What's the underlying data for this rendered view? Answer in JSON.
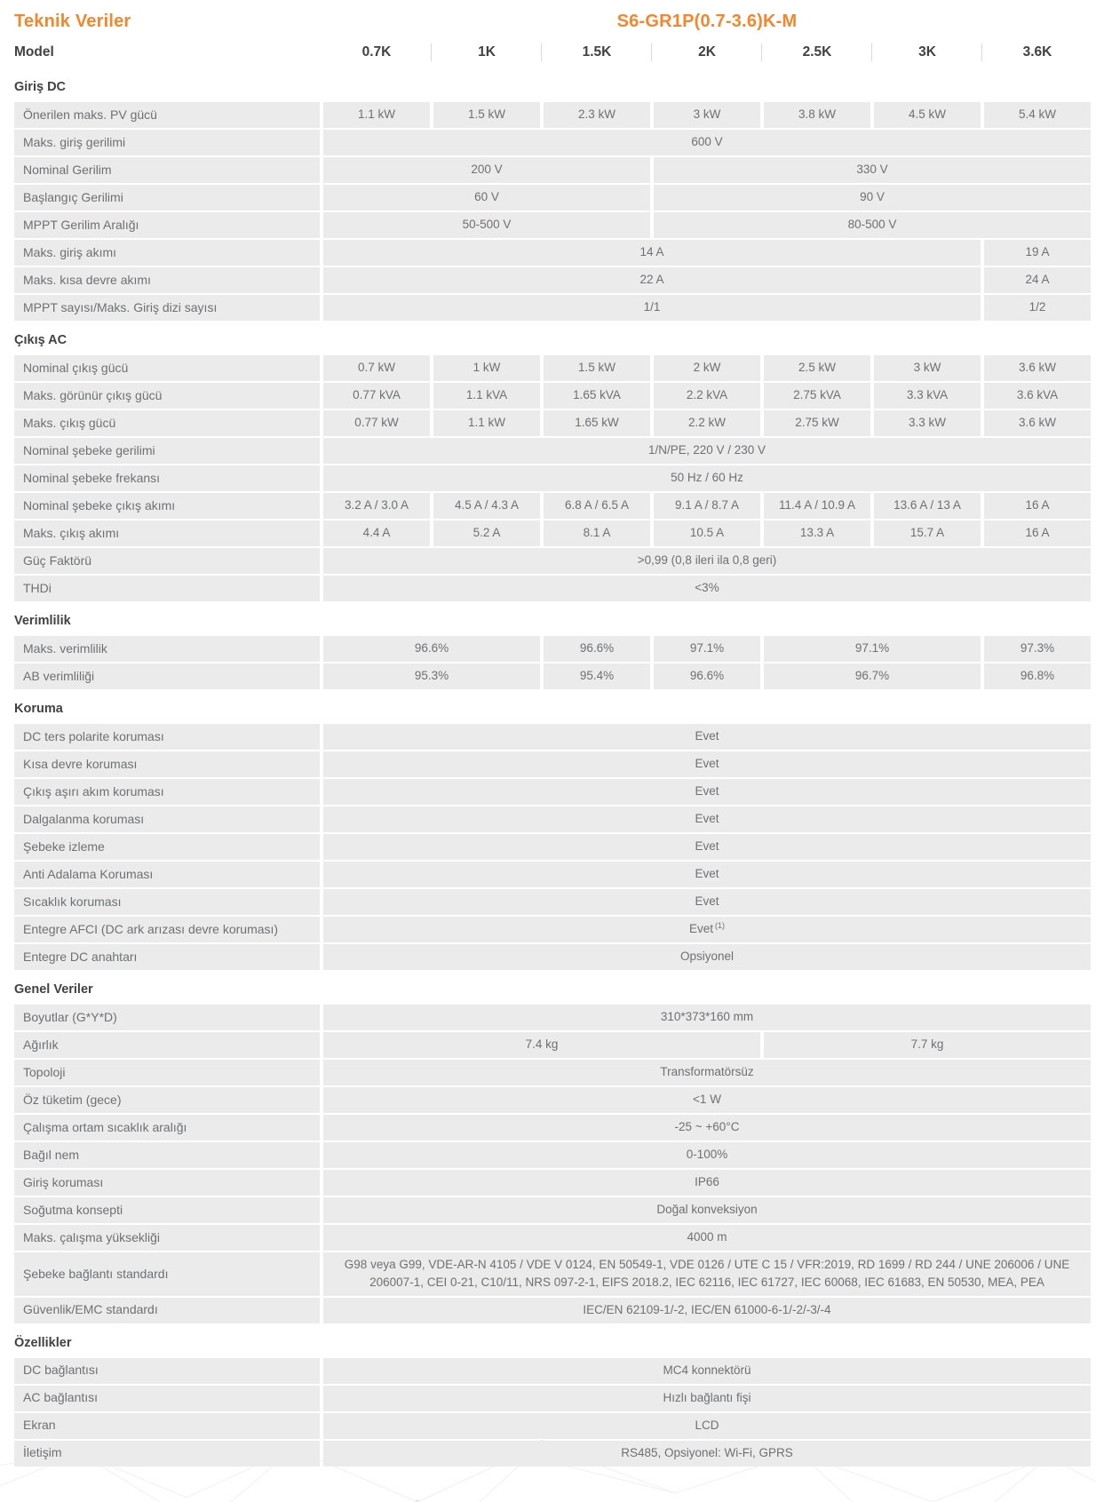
{
  "header": {
    "title": "Teknik Veriler",
    "product": "S6-GR1P(0.7-3.6)K-M"
  },
  "colors": {
    "accent": "#F6862D",
    "row_bg": "#EBEBEB",
    "text": "#6E7073",
    "heading": "#414042",
    "separator": "#D9D9DB"
  },
  "model_row": {
    "label": "Model",
    "columns": [
      "0.7K",
      "1K",
      "1.5K",
      "2K",
      "2.5K",
      "3K",
      "3.6K"
    ]
  },
  "sections": [
    {
      "title": "Giriş DC",
      "rows": [
        {
          "label": "Önerilen maks. PV gücü",
          "cells": [
            {
              "text": "1.1 kW",
              "span": 1
            },
            {
              "text": "1.5 kW",
              "span": 1
            },
            {
              "text": "2.3 kW",
              "span": 1
            },
            {
              "text": "3 kW",
              "span": 1
            },
            {
              "text": "3.8 kW",
              "span": 1
            },
            {
              "text": "4.5 kW",
              "span": 1
            },
            {
              "text": "5.4 kW",
              "span": 1
            }
          ]
        },
        {
          "label": "Maks. giriş gerilimi",
          "cells": [
            {
              "text": "600 V",
              "span": 7
            }
          ]
        },
        {
          "label": "Nominal Gerilim",
          "cells": [
            {
              "text": "200 V",
              "span": 3
            },
            {
              "text": "330 V",
              "span": 4
            }
          ]
        },
        {
          "label": "Başlangıç Gerilimi",
          "cells": [
            {
              "text": "60 V",
              "span": 3
            },
            {
              "text": "90 V",
              "span": 4
            }
          ]
        },
        {
          "label": "MPPT Gerilim Aralığı",
          "cells": [
            {
              "text": "50-500 V",
              "span": 3
            },
            {
              "text": "80-500 V",
              "span": 4
            }
          ]
        },
        {
          "label": "Maks. giriş akımı",
          "cells": [
            {
              "text": "14 A",
              "span": 6
            },
            {
              "text": "19 A",
              "span": 1
            }
          ]
        },
        {
          "label": "Maks. kısa devre akımı",
          "cells": [
            {
              "text": "22 A",
              "span": 6
            },
            {
              "text": "24 A",
              "span": 1
            }
          ]
        },
        {
          "label": "MPPT sayısı/Maks. Giriş dizi sayısı",
          "cells": [
            {
              "text": "1/1",
              "span": 6
            },
            {
              "text": "1/2",
              "span": 1
            }
          ]
        }
      ]
    },
    {
      "title": "Çıkış AC",
      "rows": [
        {
          "label": "Nominal çıkış gücü",
          "cells": [
            {
              "text": "0.7 kW",
              "span": 1
            },
            {
              "text": "1 kW",
              "span": 1
            },
            {
              "text": "1.5 kW",
              "span": 1
            },
            {
              "text": "2 kW",
              "span": 1
            },
            {
              "text": "2.5 kW",
              "span": 1
            },
            {
              "text": "3 kW",
              "span": 1
            },
            {
              "text": "3.6 kW",
              "span": 1
            }
          ]
        },
        {
          "label": "Maks. görünür çıkış gücü",
          "cells": [
            {
              "text": "0.77 kVA",
              "span": 1
            },
            {
              "text": "1.1 kVA",
              "span": 1
            },
            {
              "text": "1.65 kVA",
              "span": 1
            },
            {
              "text": "2.2 kVA",
              "span": 1
            },
            {
              "text": "2.75 kVA",
              "span": 1
            },
            {
              "text": "3.3 kVA",
              "span": 1
            },
            {
              "text": "3.6 kVA",
              "span": 1
            }
          ]
        },
        {
          "label": "Maks. çıkış gücü",
          "cells": [
            {
              "text": "0.77 kW",
              "span": 1
            },
            {
              "text": "1.1 kW",
              "span": 1
            },
            {
              "text": "1.65 kW",
              "span": 1
            },
            {
              "text": "2.2 kW",
              "span": 1
            },
            {
              "text": "2.75 kW",
              "span": 1
            },
            {
              "text": "3.3 kW",
              "span": 1
            },
            {
              "text": "3.6 kW",
              "span": 1
            }
          ]
        },
        {
          "label": "Nominal şebeke gerilimi",
          "cells": [
            {
              "text": "1/N/PE, 220 V / 230 V",
              "span": 7
            }
          ]
        },
        {
          "label": "Nominal şebeke frekansı",
          "cells": [
            {
              "text": "50 Hz / 60 Hz",
              "span": 7
            }
          ]
        },
        {
          "label": "Nominal şebeke çıkış akımı",
          "cells": [
            {
              "text": "3.2 A / 3.0 A",
              "span": 1
            },
            {
              "text": "4.5 A / 4.3 A",
              "span": 1
            },
            {
              "text": "6.8 A / 6.5 A",
              "span": 1
            },
            {
              "text": "9.1 A / 8.7 A",
              "span": 1
            },
            {
              "text": "11.4 A / 10.9 A",
              "span": 1
            },
            {
              "text": "13.6 A / 13 A",
              "span": 1
            },
            {
              "text": "16 A",
              "span": 1
            }
          ]
        },
        {
          "label": "Maks. çıkış akımı",
          "cells": [
            {
              "text": "4.4 A",
              "span": 1
            },
            {
              "text": "5.2 A",
              "span": 1
            },
            {
              "text": "8.1 A",
              "span": 1
            },
            {
              "text": "10.5 A",
              "span": 1
            },
            {
              "text": "13.3 A",
              "span": 1
            },
            {
              "text": "15.7 A",
              "span": 1
            },
            {
              "text": "16 A",
              "span": 1
            }
          ]
        },
        {
          "label": "Güç Faktörü",
          "cells": [
            {
              "text": ">0,99 (0,8 ileri ila 0,8 geri)",
              "span": 7
            }
          ]
        },
        {
          "label": "THDi",
          "cells": [
            {
              "text": "<3%",
              "span": 7
            }
          ]
        }
      ]
    },
    {
      "title": "Verimlilik",
      "rows": [
        {
          "label": "Maks. verimlilik",
          "cells": [
            {
              "text": "96.6%",
              "span": 2
            },
            {
              "text": "96.6%",
              "span": 1
            },
            {
              "text": "97.1%",
              "span": 1
            },
            {
              "text": "97.1%",
              "span": 2
            },
            {
              "text": "97.3%",
              "span": 1
            }
          ]
        },
        {
          "label": "AB verimliliği",
          "cells": [
            {
              "text": "95.3%",
              "span": 2
            },
            {
              "text": "95.4%",
              "span": 1
            },
            {
              "text": "96.6%",
              "span": 1
            },
            {
              "text": "96.7%",
              "span": 2
            },
            {
              "text": "96.8%",
              "span": 1
            }
          ]
        }
      ]
    },
    {
      "title": "Koruma",
      "rows": [
        {
          "label": "DC ters polarite koruması",
          "cells": [
            {
              "text": "Evet",
              "span": 7
            }
          ]
        },
        {
          "label": "Kısa devre koruması",
          "cells": [
            {
              "text": "Evet",
              "span": 7
            }
          ]
        },
        {
          "label": "Çıkış aşırı akım koruması",
          "cells": [
            {
              "text": "Evet",
              "span": 7
            }
          ]
        },
        {
          "label": "Dalgalanma koruması",
          "cells": [
            {
              "text": "Evet",
              "span": 7
            }
          ]
        },
        {
          "label": "Şebeke izleme",
          "cells": [
            {
              "text": "Evet",
              "span": 7
            }
          ]
        },
        {
          "label": "Anti Adalama Koruması",
          "cells": [
            {
              "text": "Evet",
              "span": 7
            }
          ]
        },
        {
          "label": "Sıcaklık koruması",
          "cells": [
            {
              "text": "Evet",
              "span": 7
            }
          ]
        },
        {
          "label": "Entegre AFCI (DC ark arızası devre koruması)",
          "cells": [
            {
              "text": "Evet",
              "sup": "(1)",
              "span": 7
            }
          ]
        },
        {
          "label": "Entegre DC anahtarı",
          "cells": [
            {
              "text": "Opsiyonel",
              "span": 7
            }
          ]
        }
      ]
    },
    {
      "title": "Genel Veriler",
      "rows": [
        {
          "label": "Boyutlar (G*Y*D)",
          "cells": [
            {
              "text": "310*373*160 mm",
              "span": 7
            }
          ]
        },
        {
          "label": "Ağırlık",
          "cells": [
            {
              "text": "7.4 kg",
              "span": 4
            },
            {
              "text": "7.7 kg",
              "span": 3
            }
          ]
        },
        {
          "label": "Topoloji",
          "cells": [
            {
              "text": "Transformatörsüz",
              "span": 7
            }
          ]
        },
        {
          "label": "Öz tüketim (gece)",
          "cells": [
            {
              "text": "<1 W",
              "span": 7
            }
          ]
        },
        {
          "label": "Çalışma ortam sıcaklık aralığı",
          "cells": [
            {
              "text": "-25 ~ +60°C",
              "span": 7
            }
          ]
        },
        {
          "label": "Bağıl nem",
          "cells": [
            {
              "text": "0-100%",
              "span": 7
            }
          ]
        },
        {
          "label": "Giriş koruması",
          "cells": [
            {
              "text": "IP66",
              "span": 7
            }
          ]
        },
        {
          "label": "Soğutma konsepti",
          "cells": [
            {
              "text": "Doğal konveksiyon",
              "span": 7
            }
          ]
        },
        {
          "label": "Maks. çalışma yüksekliği",
          "cells": [
            {
              "text": "4000 m",
              "span": 7
            }
          ]
        },
        {
          "label": "Şebeke bağlantı standardı",
          "cells": [
            {
              "text": "G98 veya G99, VDE-AR-N 4105 / VDE V 0124, EN 50549-1, VDE 0126 / UTE C 15 / VFR:2019, RD 1699 / RD 244 / UNE 206006 / UNE 206007-1, CEI 0-21, C10/11, NRS 097-2-1, EIFS 2018.2, IEC 62116, IEC 61727, IEC 60068, IEC 61683, EN 50530, MEA, PEA",
              "span": 7
            }
          ]
        },
        {
          "label": "Güvenlik/EMC standardı",
          "cells": [
            {
              "text": "IEC/EN 62109-1/-2, IEC/EN 61000-6-1/-2/-3/-4",
              "span": 7
            }
          ]
        }
      ]
    },
    {
      "title": "Özellikler",
      "rows": [
        {
          "label": "DC bağlantısı",
          "cells": [
            {
              "text": "MC4 konnektörü",
              "span": 7
            }
          ]
        },
        {
          "label": "AC bağlantısı",
          "cells": [
            {
              "text": "Hızlı bağlantı fişi",
              "span": 7
            }
          ]
        },
        {
          "label": "Ekran",
          "cells": [
            {
              "text": "LCD",
              "span": 7
            }
          ]
        },
        {
          "label": "İletişim",
          "cells": [
            {
              "text": "RS485, Opsiyonel: Wi-Fi, GPRS",
              "span": 7
            }
          ]
        }
      ]
    }
  ]
}
